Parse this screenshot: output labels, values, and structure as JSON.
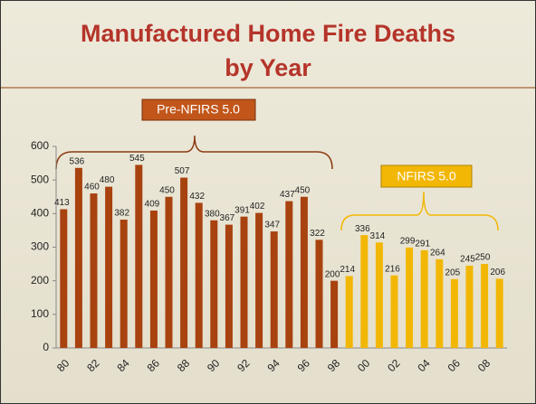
{
  "chart_data": {
    "type": "bar",
    "title": "Manufactured Home Fire Deaths by Year",
    "categories": [
      "80",
      null,
      "82",
      null,
      "84",
      null,
      "86",
      null,
      "88",
      null,
      "90",
      null,
      "92",
      null,
      "94",
      null,
      "96",
      null,
      "98",
      null,
      "00",
      null,
      "02",
      null,
      "04",
      null,
      "06",
      null,
      "08",
      null
    ],
    "series": [
      {
        "name": "Pre-NFIRS 5.0",
        "color": "#a8420f",
        "values": [
          413,
          536,
          460,
          480,
          382,
          545,
          409,
          450,
          507,
          432,
          380,
          367,
          391,
          402,
          347,
          437,
          450,
          322,
          200,
          null,
          null,
          null,
          null,
          null,
          null,
          null,
          null,
          null,
          null,
          null
        ]
      },
      {
        "name": "NFIRS 5.0",
        "color": "#f2b705",
        "values": [
          null,
          null,
          null,
          null,
          null,
          null,
          null,
          null,
          null,
          null,
          null,
          null,
          null,
          null,
          null,
          null,
          null,
          null,
          null,
          214,
          336,
          314,
          216,
          299,
          291,
          264,
          205,
          245,
          250,
          206
        ]
      }
    ],
    "ylim": [
      0,
      600
    ],
    "yticks": [
      0,
      100,
      200,
      300,
      400,
      500,
      600
    ]
  }
}
